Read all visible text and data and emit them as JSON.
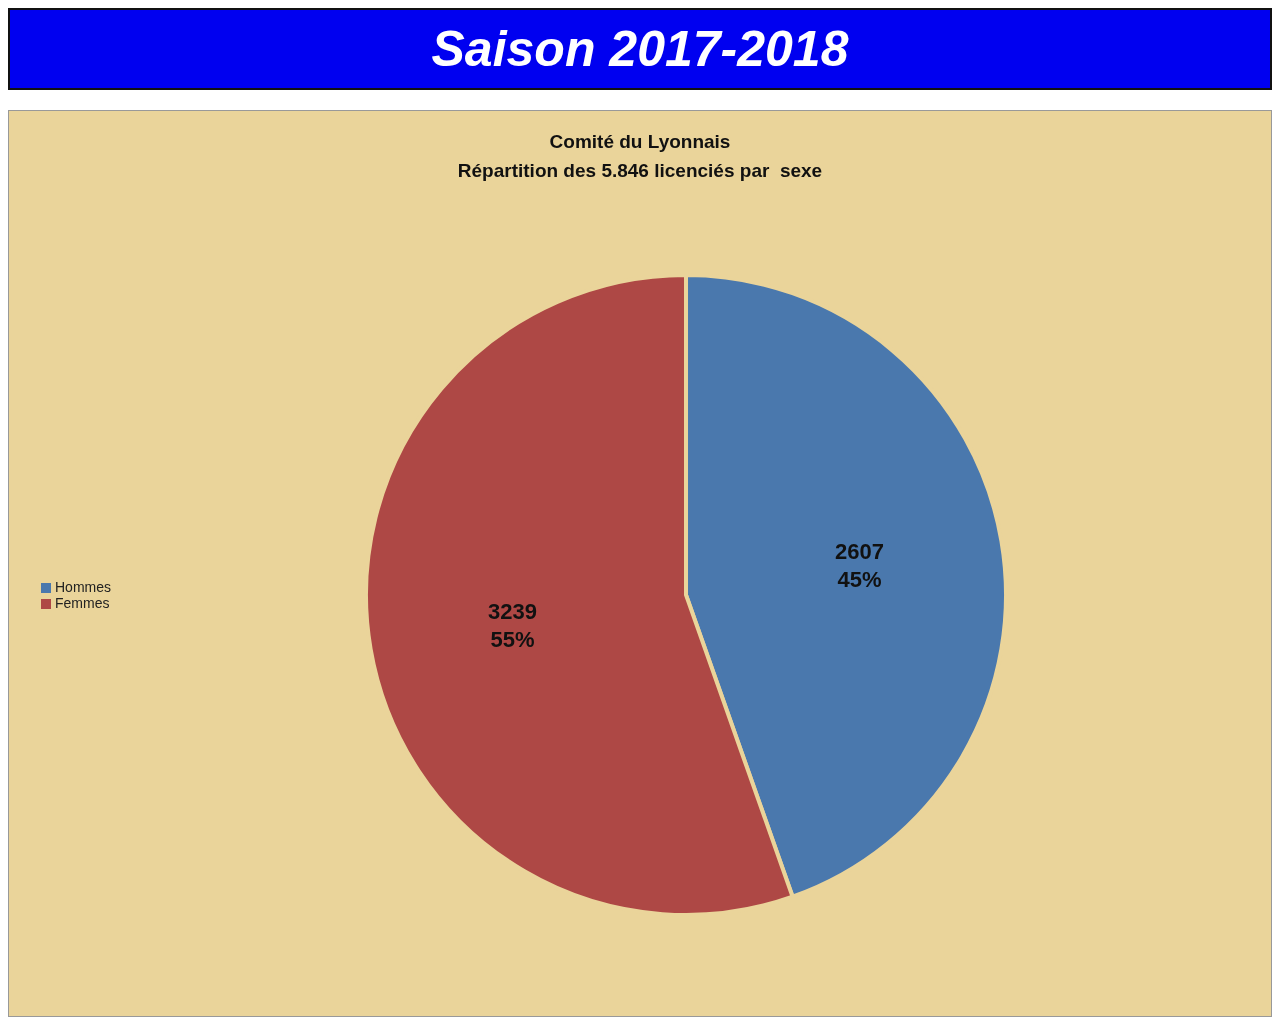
{
  "chart_data": {
    "type": "pie",
    "title": "Saison 2017-2018",
    "subtitle": "Comité du Lyonnais\nRépartition des 5.846 licenciés par  sexe",
    "categories": [
      "Hommes",
      "Femmes"
    ],
    "values": [
      2607,
      3239
    ],
    "colors": [
      "#4a78ad",
      "#ae4845"
    ],
    "value_labels": [
      "2607\n45%",
      "3239\n55%"
    ],
    "legend": "left"
  }
}
